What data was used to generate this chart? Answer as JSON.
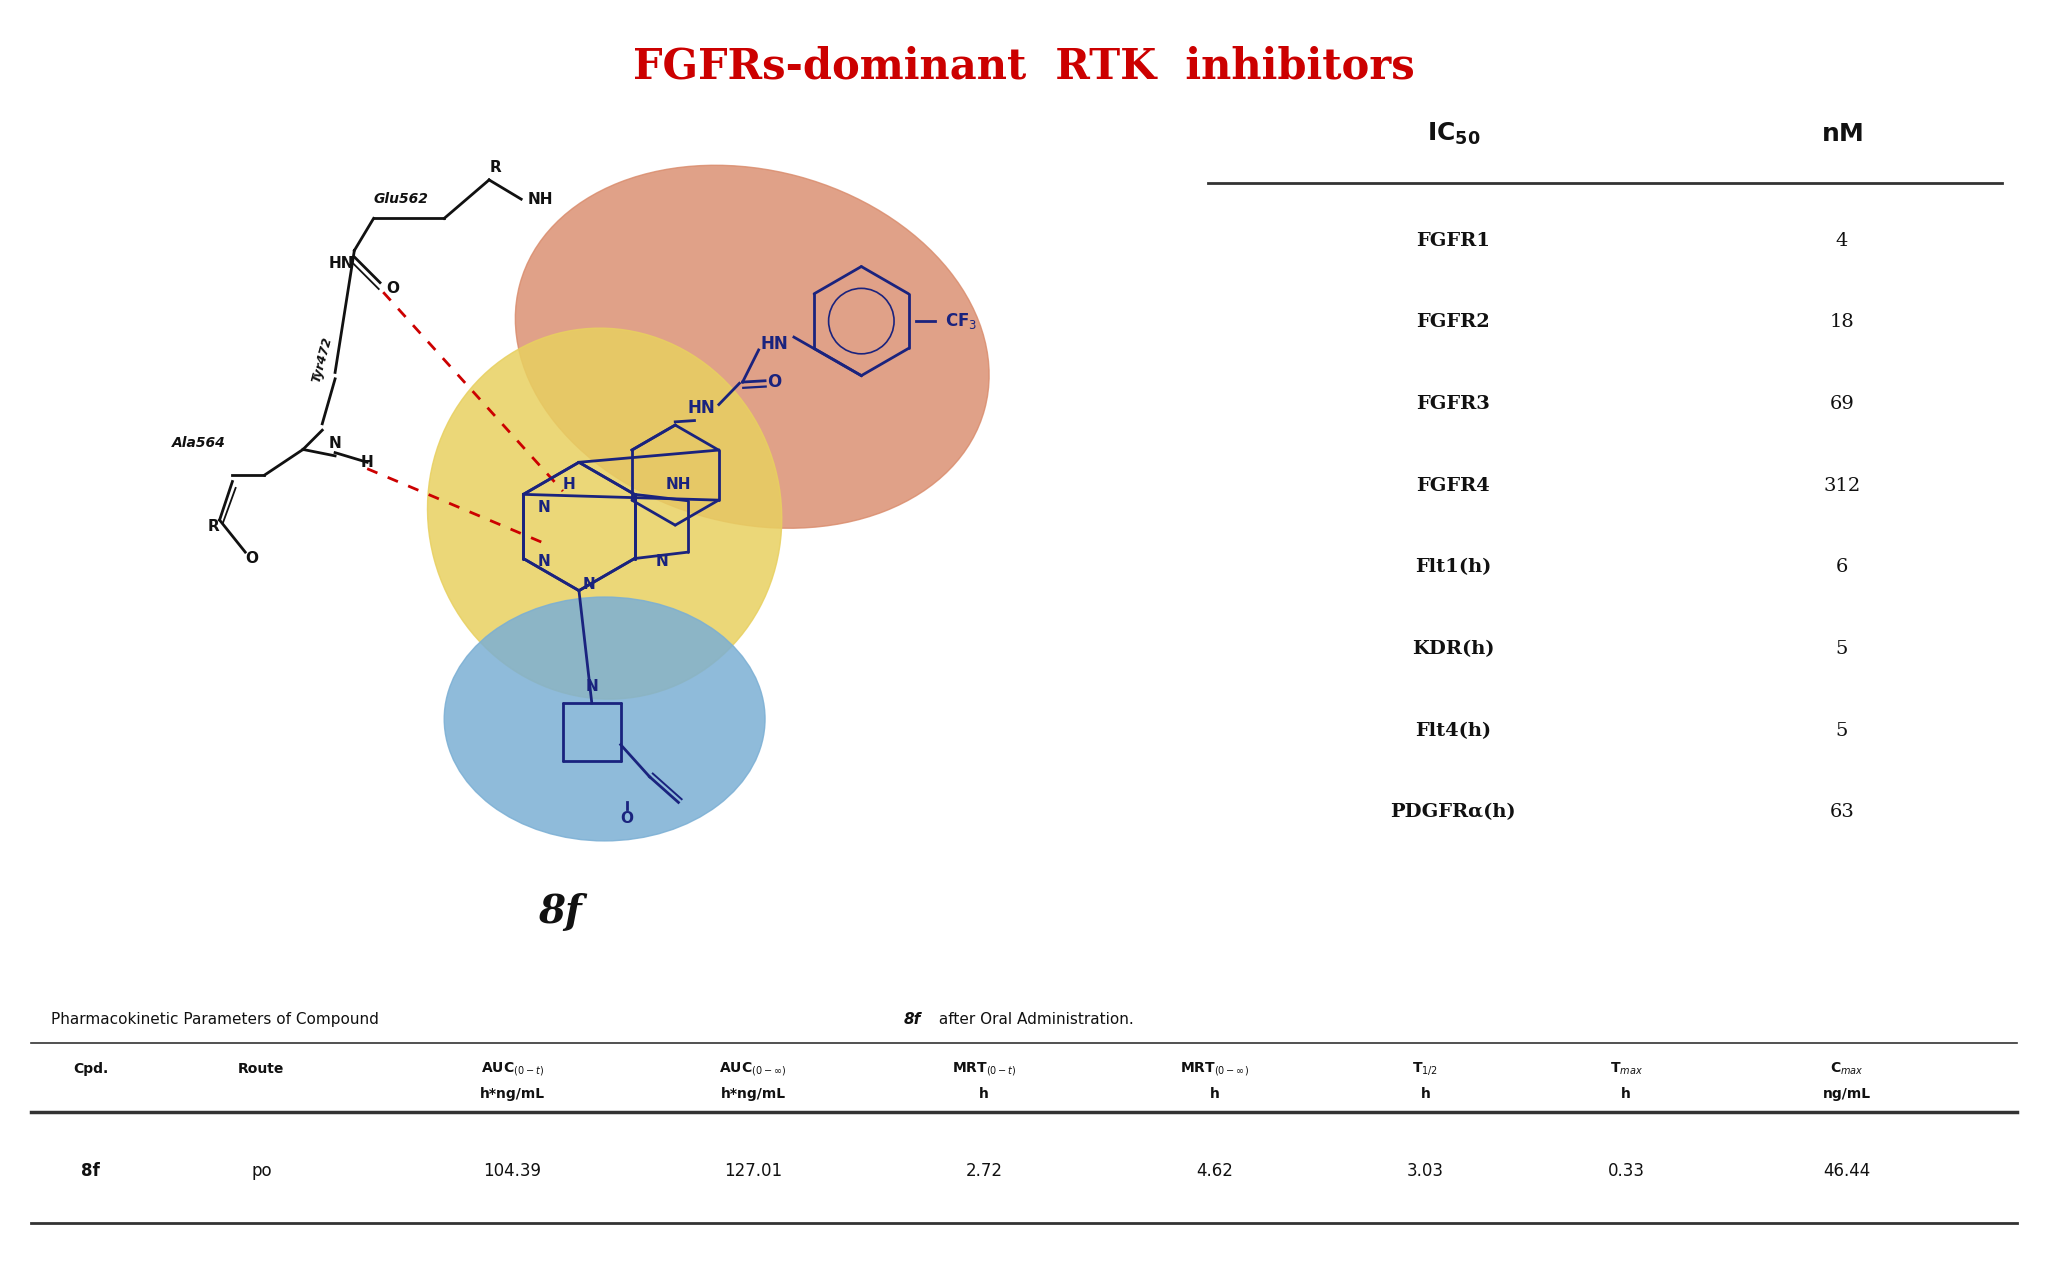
{
  "title": "FGFRs-dominant  RTK  inhibitors",
  "title_color": "#CC0000",
  "title_fontsize": 30,
  "ic50_rows": [
    [
      "FGFR1",
      "4"
    ],
    [
      "FGFR2",
      "18"
    ],
    [
      "FGFR3",
      "69"
    ],
    [
      "FGFR4",
      "312"
    ],
    [
      "Flt1(h)",
      "6"
    ],
    [
      "KDR(h)",
      "5"
    ],
    [
      "Flt4(h)",
      "5"
    ],
    [
      "PDGFRα(h)",
      "63"
    ]
  ],
  "pk_row": [
    "8f",
    "po",
    "104.39",
    "127.01",
    "2.72",
    "4.62",
    "3.03",
    "0.33",
    "46.44"
  ],
  "orange_blob_color": "#D98A6A",
  "yellow_blob_color": "#E8D060",
  "blue_blob_color": "#7BAFD4",
  "molecule_color": "#1A237E",
  "residue_color": "#111111",
  "background_color": "#FFFFFF",
  "red_dash_color": "#CC0000"
}
